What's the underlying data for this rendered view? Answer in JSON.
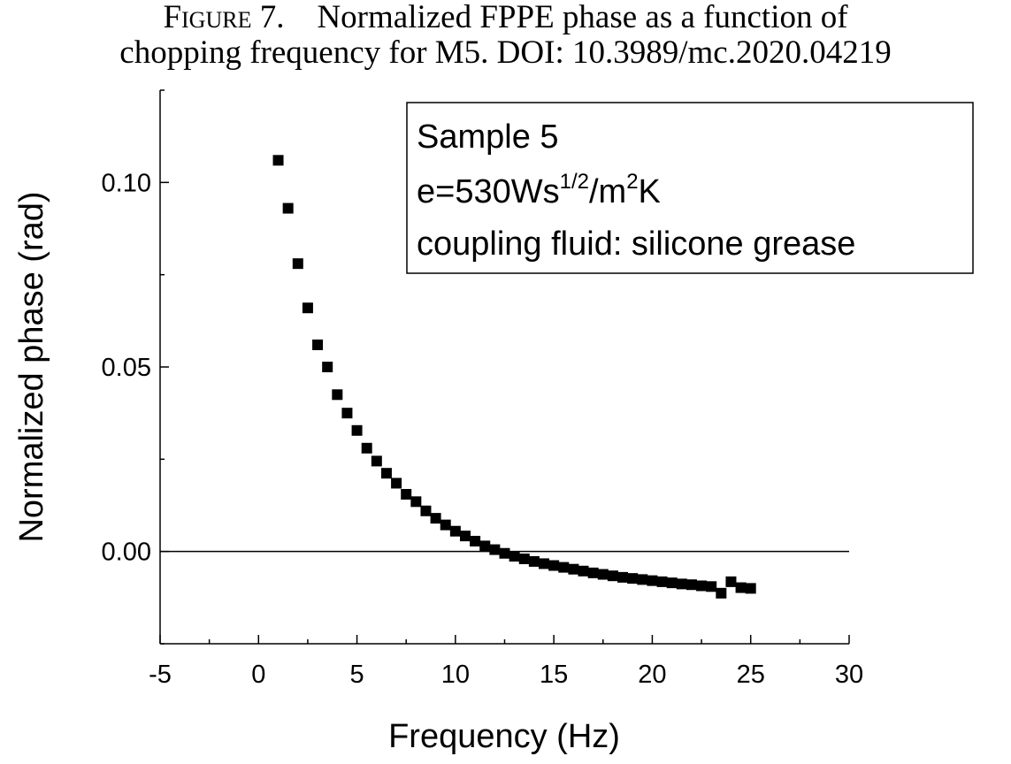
{
  "caption": {
    "figure_word": "Figure",
    "figure_number": "7.",
    "line1_text": "Normalized FPPE phase as a function of",
    "line2_text": "chopping frequency for M5. DOI: 10.3989/mc.2020.04219"
  },
  "chart_data": {
    "type": "scatter",
    "xlabel": "Frequency (Hz)",
    "ylabel": "Normalized phase (rad)",
    "xlim": [
      -5,
      30
    ],
    "ylim": [
      -0.025,
      0.125
    ],
    "xticks": [
      -5,
      0,
      5,
      10,
      15,
      20,
      25,
      30
    ],
    "xtick_labels": [
      "-5",
      "0",
      "5",
      "10",
      "15",
      "20",
      "25",
      "30"
    ],
    "yticks": [
      0.0,
      0.05,
      0.1
    ],
    "ytick_labels": [
      "0.00",
      "0.05",
      "0.10"
    ],
    "grid": false,
    "zero_line": true,
    "marker": "square",
    "marker_color": "#000000",
    "legend": {
      "placement": "top-right",
      "lines": [
        "Sample 5",
        "e=530Ws",
        "1/2",
        "/m",
        "2",
        "K",
        "coupling fluid: silicone grease"
      ]
    },
    "series": [
      {
        "x": [
          1.0,
          1.5,
          2.0,
          2.5,
          3.0,
          3.5,
          4.0,
          4.5,
          5.0,
          5.5,
          6.0,
          6.5,
          7.0,
          7.5,
          8.0,
          8.5,
          9.0,
          9.5,
          10.0,
          10.5,
          11.0,
          11.5,
          12.0,
          12.5,
          13.0,
          13.5,
          14.0,
          14.5,
          15.0,
          15.5,
          16.0,
          16.5,
          17.0,
          17.5,
          18.0,
          18.5,
          19.0,
          19.5,
          20.0,
          20.5,
          21.0,
          21.5,
          22.0,
          22.5,
          23.0,
          23.5,
          24.0,
          24.5,
          25.0
        ],
        "y": [
          0.106,
          0.093,
          0.078,
          0.066,
          0.056,
          0.05,
          0.0425,
          0.0375,
          0.0328,
          0.028,
          0.0245,
          0.0212,
          0.0185,
          0.0155,
          0.0135,
          0.011,
          0.009,
          0.0072,
          0.0055,
          0.0042,
          0.0028,
          0.0015,
          0.0005,
          -0.0005,
          -0.0013,
          -0.002,
          -0.0027,
          -0.0033,
          -0.0038,
          -0.0043,
          -0.0048,
          -0.0053,
          -0.0058,
          -0.0062,
          -0.0066,
          -0.007,
          -0.0073,
          -0.0076,
          -0.0079,
          -0.0082,
          -0.0085,
          -0.0088,
          -0.009,
          -0.0093,
          -0.0095,
          -0.0113,
          -0.0082,
          -0.0098,
          -0.01
        ]
      }
    ]
  }
}
